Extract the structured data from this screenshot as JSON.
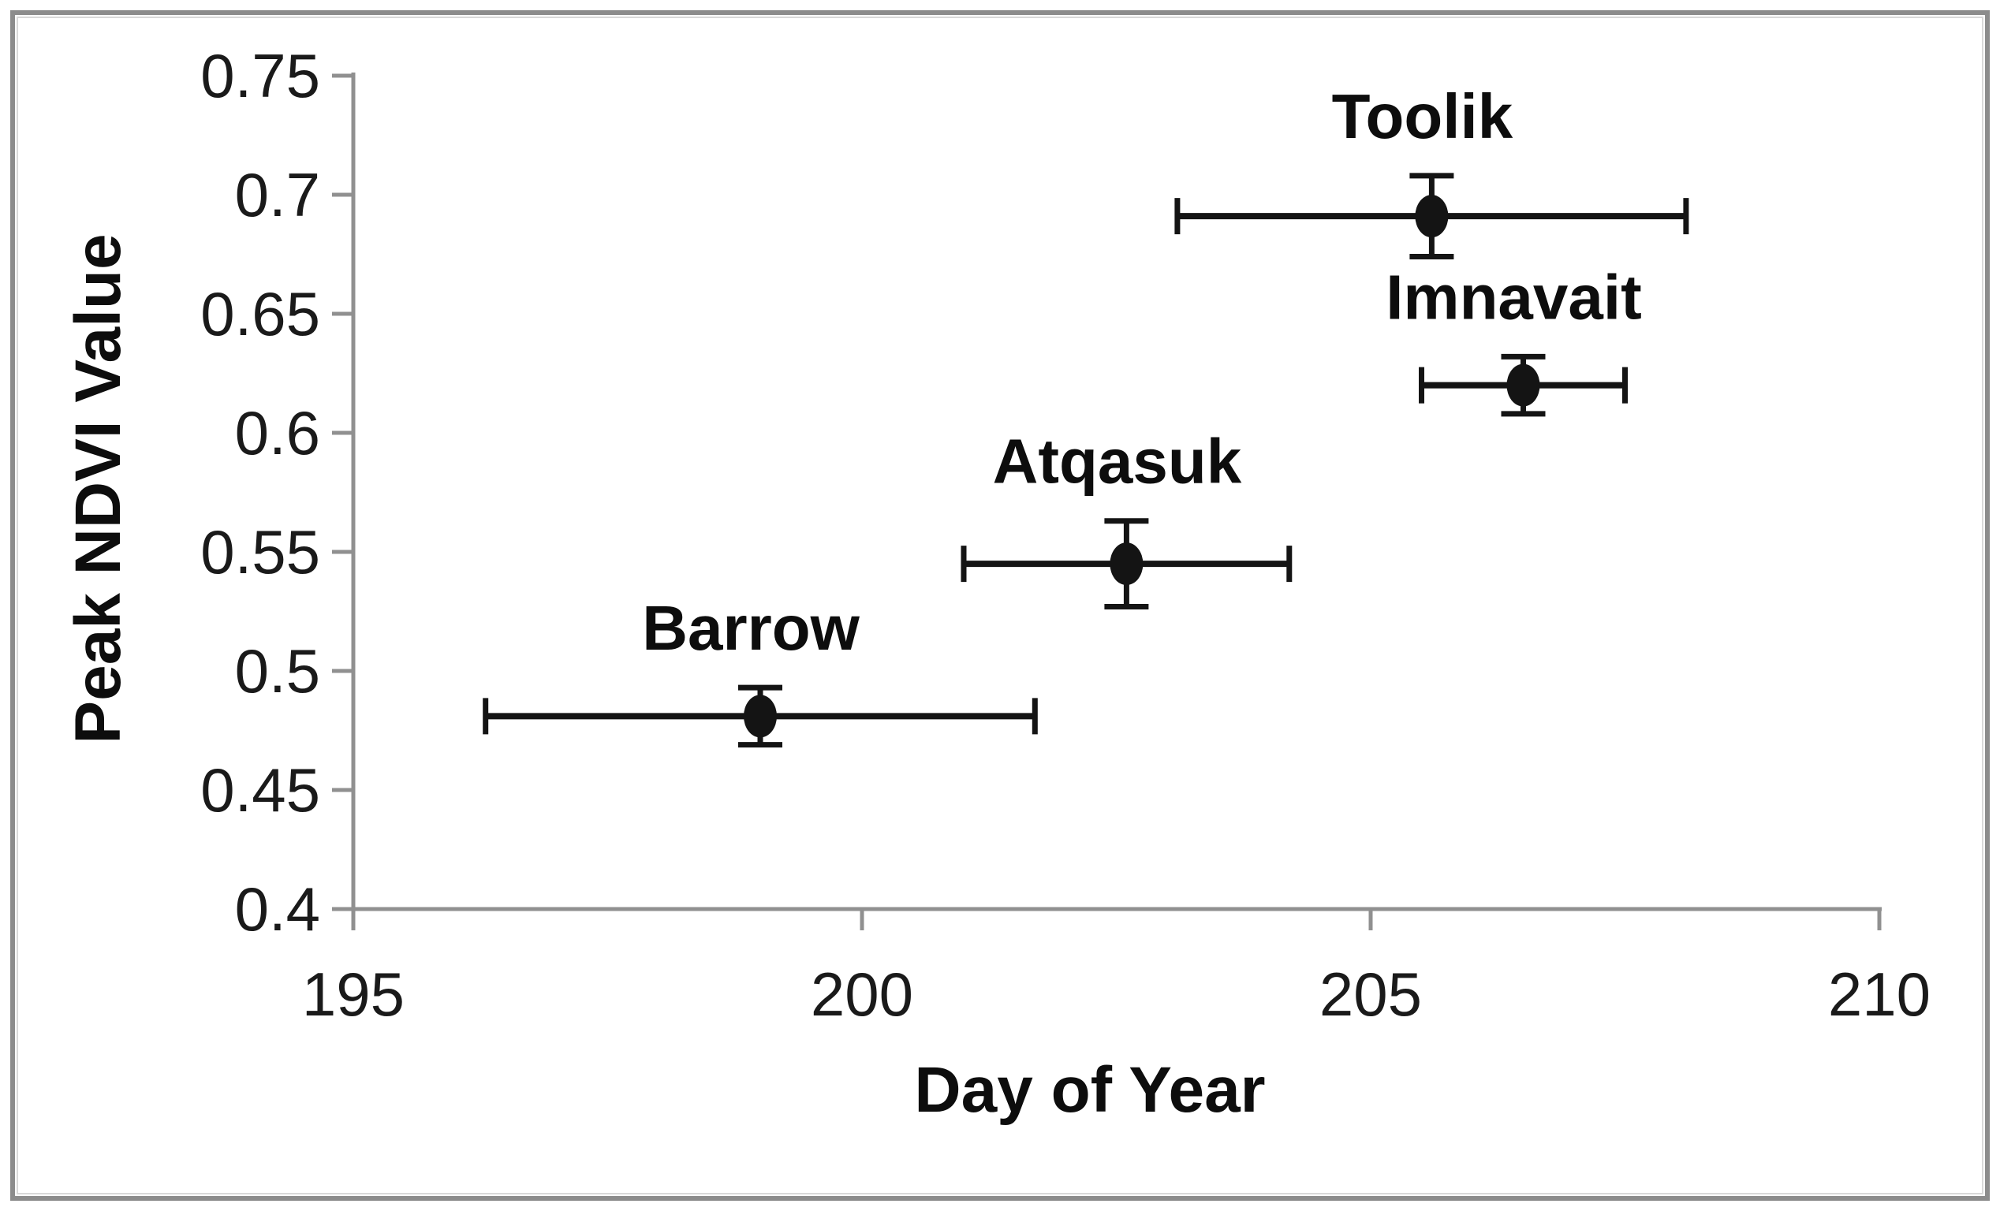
{
  "figure": {
    "background_color": "#ffffff",
    "border_color": "#8c8c8c",
    "border_highlight_color": "#d9d9d9"
  },
  "chart_data": {
    "type": "scatter",
    "title": "",
    "xlabel": "Day of Year",
    "ylabel": "Peak NDVI Value",
    "xlim": [
      195,
      210
    ],
    "ylim": [
      0.4,
      0.75
    ],
    "x_ticks": [
      195,
      200,
      205,
      210
    ],
    "y_ticks": [
      0.4,
      0.45,
      0.5,
      0.55,
      0.6,
      0.65,
      0.7,
      0.75
    ],
    "y_tick_labels": [
      "0.4",
      "0.45",
      "0.5",
      "0.55",
      "0.6",
      "0.65",
      "0.7",
      "0.75"
    ],
    "x_tick_labels": [
      "195",
      "200",
      "205",
      "210"
    ],
    "grid": false,
    "legend": false,
    "axis_color": "#909090",
    "marker_color": "#141414",
    "error_bar_color": "#141414",
    "points": [
      {
        "label": "Barrow",
        "x": 199.0,
        "y": 0.481,
        "x_err": 2.7,
        "y_err": 0.012
      },
      {
        "label": "Atqasuk",
        "x": 202.6,
        "y": 0.545,
        "x_err": 1.6,
        "y_err": 0.018
      },
      {
        "label": "Toolik",
        "x": 205.6,
        "y": 0.691,
        "x_err": 2.5,
        "y_err": 0.017
      },
      {
        "label": "Imnavait",
        "x": 206.5,
        "y": 0.62,
        "x_err": 1.0,
        "y_err": 0.012
      }
    ]
  }
}
